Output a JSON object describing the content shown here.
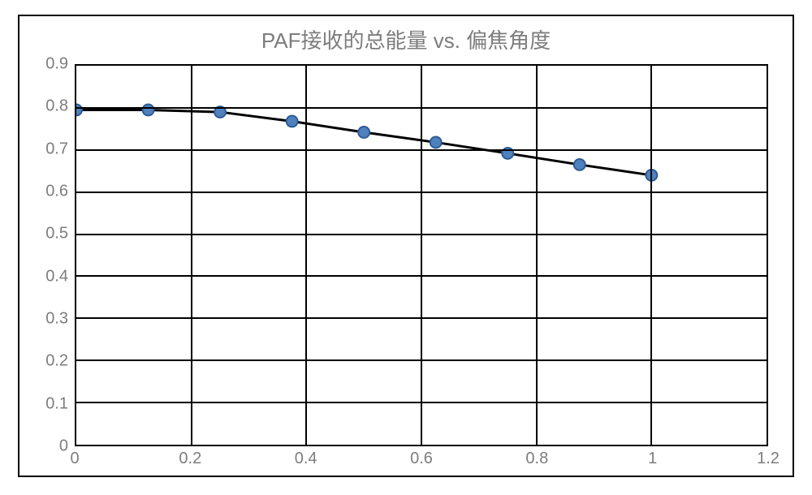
{
  "chart": {
    "type": "line",
    "title": "PAF接收的总能量 vs. 偏焦角度",
    "title_color": "#7d7d7d",
    "title_fontsize": 26,
    "background_color": "#ffffff",
    "frame_border_color": "#000000",
    "plot_border_color": "#000000",
    "grid_color": "#000000",
    "axis_label_color": "#7d7d7d",
    "axis_label_fontsize": 20,
    "line_color": "#000000",
    "line_width": 3,
    "marker_fill": "#4f81bd",
    "marker_stroke": "#2e5b94",
    "marker_stroke_width": 2,
    "marker_radius": 7,
    "marker_style": "circle",
    "xlim": [
      0,
      1.2
    ],
    "ylim": [
      0,
      0.9
    ],
    "x_ticks": [
      0,
      0.2,
      0.4,
      0.6,
      0.8,
      1,
      1.2
    ],
    "x_tick_labels": [
      "0",
      "0.2",
      "0.4",
      "0.6",
      "0.8",
      "1",
      "1.2"
    ],
    "y_ticks": [
      0,
      0.1,
      0.2,
      0.3,
      0.4,
      0.5,
      0.6,
      0.7,
      0.8,
      0.9
    ],
    "y_tick_labels": [
      "0",
      "0.1",
      "0.2",
      "0.3",
      "0.4",
      "0.5",
      "0.6",
      "0.7",
      "0.8",
      "0.9"
    ],
    "series": [
      {
        "name": "energy",
        "x": [
          0.0,
          0.125,
          0.25,
          0.375,
          0.5,
          0.625,
          0.75,
          0.875,
          1.0
        ],
        "y": [
          0.795,
          0.795,
          0.79,
          0.768,
          0.742,
          0.718,
          0.692,
          0.665,
          0.64
        ]
      }
    ]
  }
}
